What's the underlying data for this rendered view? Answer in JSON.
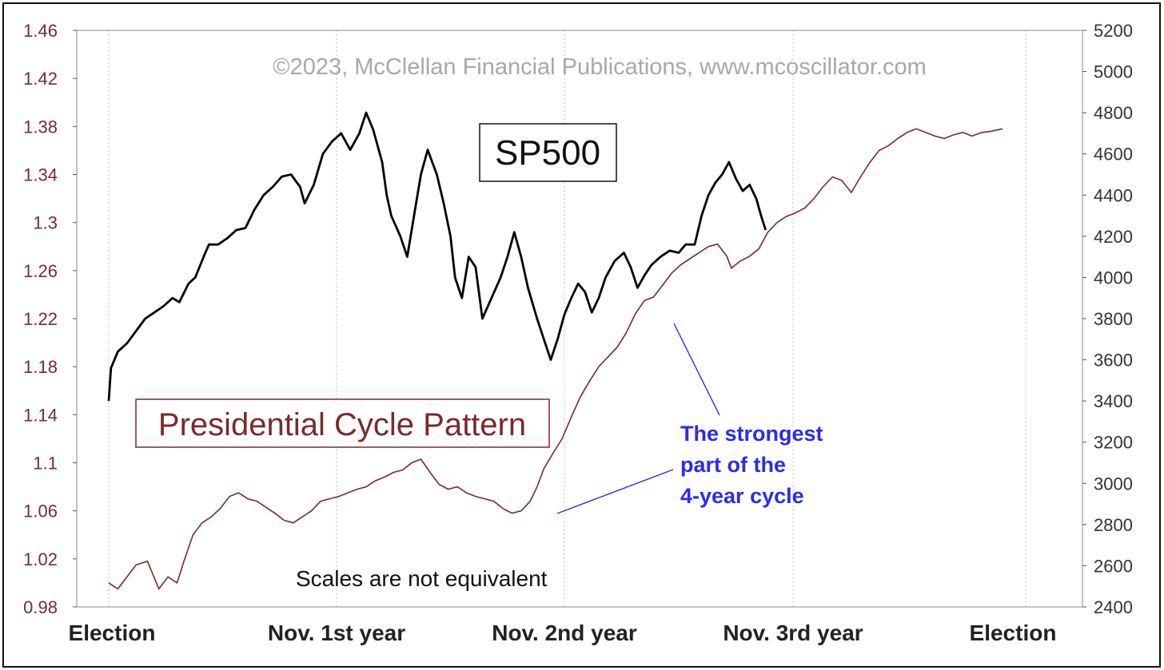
{
  "chart_data": {
    "type": "line",
    "copyright": "©2023, McClellan Financial Publications, www.mcoscillator.com",
    "x_categories": [
      "Election",
      "Nov. 1st year",
      "Nov. 2nd year",
      "Nov. 3rd year",
      "Election"
    ],
    "x_range": [
      0,
      4
    ],
    "left_axis": {
      "range": [
        0.98,
        1.46
      ],
      "ticks": [
        "1.46",
        "1.42",
        "1.38",
        "1.34",
        "1.3",
        "1.26",
        "1.22",
        "1.18",
        "1.14",
        "1.1",
        "1.06",
        "1.02",
        "0.98"
      ]
    },
    "right_axis": {
      "range": [
        2400,
        5200
      ],
      "ticks": [
        "5200",
        "5000",
        "4800",
        "4600",
        "4400",
        "4200",
        "4000",
        "3800",
        "3600",
        "3400",
        "3200",
        "3000",
        "2800",
        "2600",
        "2400"
      ]
    },
    "grid": "vertical dotted at x categories",
    "series": [
      {
        "name": "SP500",
        "axis": "right",
        "color": "#000000",
        "points": [
          [
            0.0,
            3400
          ],
          [
            0.01,
            3560
          ],
          [
            0.04,
            3640
          ],
          [
            0.08,
            3680
          ],
          [
            0.12,
            3740
          ],
          [
            0.16,
            3800
          ],
          [
            0.2,
            3830
          ],
          [
            0.24,
            3860
          ],
          [
            0.28,
            3900
          ],
          [
            0.31,
            3880
          ],
          [
            0.35,
            3970
          ],
          [
            0.38,
            4000
          ],
          [
            0.42,
            4110
          ],
          [
            0.44,
            4160
          ],
          [
            0.48,
            4160
          ],
          [
            0.52,
            4190
          ],
          [
            0.56,
            4230
          ],
          [
            0.6,
            4240
          ],
          [
            0.64,
            4330
          ],
          [
            0.68,
            4400
          ],
          [
            0.72,
            4440
          ],
          [
            0.76,
            4490
          ],
          [
            0.8,
            4500
          ],
          [
            0.84,
            4440
          ],
          [
            0.86,
            4360
          ],
          [
            0.9,
            4450
          ],
          [
            0.94,
            4600
          ],
          [
            0.98,
            4660
          ],
          [
            1.02,
            4700
          ],
          [
            1.06,
            4620
          ],
          [
            1.1,
            4700
          ],
          [
            1.13,
            4800
          ],
          [
            1.16,
            4720
          ],
          [
            1.2,
            4560
          ],
          [
            1.22,
            4400
          ],
          [
            1.24,
            4300
          ],
          [
            1.28,
            4200
          ],
          [
            1.31,
            4100
          ],
          [
            1.34,
            4300
          ],
          [
            1.37,
            4500
          ],
          [
            1.4,
            4620
          ],
          [
            1.44,
            4500
          ],
          [
            1.47,
            4360
          ],
          [
            1.5,
            4200
          ],
          [
            1.52,
            4000
          ],
          [
            1.55,
            3900
          ],
          [
            1.58,
            4100
          ],
          [
            1.61,
            4050
          ],
          [
            1.64,
            3800
          ],
          [
            1.68,
            3900
          ],
          [
            1.72,
            4000
          ],
          [
            1.75,
            4100
          ],
          [
            1.78,
            4220
          ],
          [
            1.81,
            4100
          ],
          [
            1.84,
            3950
          ],
          [
            1.88,
            3800
          ],
          [
            1.91,
            3700
          ],
          [
            1.94,
            3600
          ],
          [
            1.97,
            3700
          ],
          [
            2.0,
            3820
          ],
          [
            2.03,
            3900
          ],
          [
            2.06,
            3970
          ],
          [
            2.09,
            3930
          ],
          [
            2.12,
            3830
          ],
          [
            2.15,
            3900
          ],
          [
            2.18,
            4000
          ],
          [
            2.22,
            4080
          ],
          [
            2.26,
            4120
          ],
          [
            2.29,
            4050
          ],
          [
            2.32,
            3950
          ],
          [
            2.35,
            4010
          ],
          [
            2.38,
            4060
          ],
          [
            2.42,
            4100
          ],
          [
            2.46,
            4130
          ],
          [
            2.5,
            4120
          ],
          [
            2.53,
            4160
          ],
          [
            2.57,
            4160
          ],
          [
            2.6,
            4300
          ],
          [
            2.63,
            4400
          ],
          [
            2.66,
            4460
          ],
          [
            2.69,
            4500
          ],
          [
            2.72,
            4560
          ],
          [
            2.75,
            4480
          ],
          [
            2.78,
            4420
          ],
          [
            2.81,
            4450
          ],
          [
            2.84,
            4380
          ],
          [
            2.86,
            4300
          ],
          [
            2.88,
            4230
          ]
        ]
      },
      {
        "name": "Presidential Cycle Pattern",
        "axis": "left",
        "color": "#7a2a2a",
        "points": [
          [
            0.0,
            1.0
          ],
          [
            0.04,
            0.995
          ],
          [
            0.08,
            1.005
          ],
          [
            0.12,
            1.015
          ],
          [
            0.17,
            1.018
          ],
          [
            0.22,
            0.995
          ],
          [
            0.26,
            1.005
          ],
          [
            0.3,
            1.0
          ],
          [
            0.33,
            1.018
          ],
          [
            0.37,
            1.04
          ],
          [
            0.41,
            1.05
          ],
          [
            0.45,
            1.055
          ],
          [
            0.49,
            1.062
          ],
          [
            0.53,
            1.072
          ],
          [
            0.57,
            1.075
          ],
          [
            0.61,
            1.07
          ],
          [
            0.65,
            1.068
          ],
          [
            0.69,
            1.063
          ],
          [
            0.73,
            1.058
          ],
          [
            0.77,
            1.052
          ],
          [
            0.81,
            1.05
          ],
          [
            0.85,
            1.055
          ],
          [
            0.89,
            1.06
          ],
          [
            0.93,
            1.068
          ],
          [
            0.97,
            1.07
          ],
          [
            1.01,
            1.072
          ],
          [
            1.05,
            1.075
          ],
          [
            1.09,
            1.078
          ],
          [
            1.13,
            1.08
          ],
          [
            1.17,
            1.085
          ],
          [
            1.21,
            1.088
          ],
          [
            1.25,
            1.092
          ],
          [
            1.29,
            1.094
          ],
          [
            1.33,
            1.1
          ],
          [
            1.37,
            1.103
          ],
          [
            1.41,
            1.092
          ],
          [
            1.45,
            1.082
          ],
          [
            1.49,
            1.078
          ],
          [
            1.53,
            1.08
          ],
          [
            1.57,
            1.075
          ],
          [
            1.61,
            1.072
          ],
          [
            1.65,
            1.07
          ],
          [
            1.69,
            1.068
          ],
          [
            1.73,
            1.062
          ],
          [
            1.77,
            1.058
          ],
          [
            1.81,
            1.06
          ],
          [
            1.85,
            1.068
          ],
          [
            1.88,
            1.08
          ],
          [
            1.91,
            1.095
          ],
          [
            1.95,
            1.108
          ],
          [
            1.99,
            1.12
          ],
          [
            2.03,
            1.138
          ],
          [
            2.07,
            1.155
          ],
          [
            2.11,
            1.168
          ],
          [
            2.15,
            1.18
          ],
          [
            2.19,
            1.188
          ],
          [
            2.23,
            1.196
          ],
          [
            2.27,
            1.208
          ],
          [
            2.31,
            1.224
          ],
          [
            2.35,
            1.235
          ],
          [
            2.39,
            1.238
          ],
          [
            2.43,
            1.248
          ],
          [
            2.47,
            1.258
          ],
          [
            2.51,
            1.265
          ],
          [
            2.55,
            1.27
          ],
          [
            2.59,
            1.275
          ],
          [
            2.63,
            1.28
          ],
          [
            2.67,
            1.282
          ],
          [
            2.71,
            1.272
          ],
          [
            2.73,
            1.262
          ],
          [
            2.77,
            1.268
          ],
          [
            2.81,
            1.272
          ],
          [
            2.85,
            1.278
          ],
          [
            2.89,
            1.292
          ],
          [
            2.93,
            1.3
          ],
          [
            2.97,
            1.305
          ],
          [
            3.01,
            1.308
          ],
          [
            3.05,
            1.312
          ],
          [
            3.09,
            1.32
          ],
          [
            3.13,
            1.33
          ],
          [
            3.17,
            1.338
          ],
          [
            3.21,
            1.335
          ],
          [
            3.25,
            1.325
          ],
          [
            3.29,
            1.338
          ],
          [
            3.33,
            1.35
          ],
          [
            3.37,
            1.36
          ],
          [
            3.41,
            1.364
          ],
          [
            3.45,
            1.37
          ],
          [
            3.49,
            1.375
          ],
          [
            3.53,
            1.378
          ],
          [
            3.57,
            1.375
          ],
          [
            3.61,
            1.372
          ],
          [
            3.65,
            1.37
          ],
          [
            3.69,
            1.373
          ],
          [
            3.73,
            1.375
          ],
          [
            3.77,
            1.372
          ],
          [
            3.81,
            1.375
          ],
          [
            3.85,
            1.376
          ],
          [
            3.9,
            1.378
          ]
        ]
      }
    ],
    "annotations": {
      "sp500_label": "SP500",
      "cycle_label": "Presidential Cycle Pattern",
      "strongest_lines": [
        "The strongest",
        "part of the",
        "4-year cycle"
      ],
      "scales_note": "Scales are not equivalent"
    }
  }
}
